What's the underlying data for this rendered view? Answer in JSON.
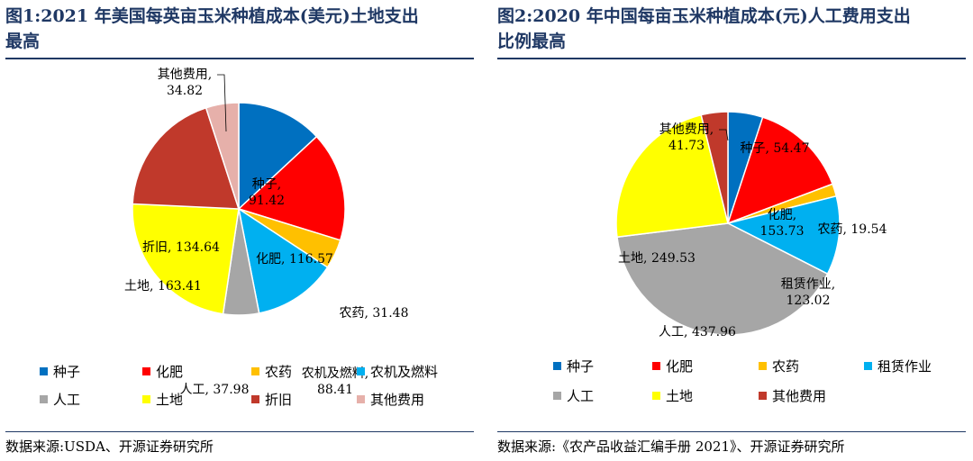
{
  "charts": [
    {
      "title_line1": "图1:2021 年美国每英亩玉米种植成本(美元)土地支出",
      "title_line2": "最高",
      "source": "数据来源:USDA、开源证券研究所"
    },
    {
      "title_line1": "图2:2020 年中国每亩玉米种植成本(元)人工费用支出",
      "title_line2": "比例最高",
      "source": "数据来源:《农产品收益汇编手册 2021》、开源证券研究所"
    }
  ],
  "chart_data": [
    {
      "type": "pie",
      "title": "2021 年美国每英亩玉米种植成本(美元)土地支出最高",
      "legend_position": "bottom",
      "slices": [
        {
          "name": "种子",
          "value": 91.42,
          "color": "#0070c0",
          "label": "种子,\n91.42"
        },
        {
          "name": "化肥",
          "value": 116.57,
          "color": "#ff0000",
          "label": "化肥, 116.57"
        },
        {
          "name": "农药",
          "value": 31.48,
          "color": "#ffc000",
          "label": "农药, 31.48"
        },
        {
          "name": "农机及燃料",
          "value": 88.41,
          "color": "#00b0f0",
          "label": "农机及燃料,\n88.41"
        },
        {
          "name": "人工",
          "value": 37.98,
          "color": "#a6a6a6",
          "label": "人工, 37.98"
        },
        {
          "name": "土地",
          "value": 163.41,
          "color": "#ffff00",
          "label": "土地, 163.41"
        },
        {
          "name": "折旧",
          "value": 134.64,
          "color": "#c0392b",
          "label": "折旧, 134.64"
        },
        {
          "name": "其他费用",
          "value": 34.82,
          "color": "#e6b0aa",
          "label": "其他费用,\n34.82"
        }
      ]
    },
    {
      "type": "pie",
      "title": "2020 年中国每亩玉米种植成本(元)人工费用支出比例最高",
      "legend_position": "bottom",
      "slices": [
        {
          "name": "种子",
          "value": 54.47,
          "color": "#0070c0",
          "label": "种子, 54.47"
        },
        {
          "name": "化肥",
          "value": 153.73,
          "color": "#ff0000",
          "label": "化肥,\n153.73"
        },
        {
          "name": "农药",
          "value": 19.54,
          "color": "#ffc000",
          "label": "农药, 19.54"
        },
        {
          "name": "租赁作业",
          "value": 123.02,
          "color": "#00b0f0",
          "label": "租赁作业,\n123.02"
        },
        {
          "name": "人工",
          "value": 437.96,
          "color": "#a6a6a6",
          "label": "人工, 437.96"
        },
        {
          "name": "土地",
          "value": 249.53,
          "color": "#ffff00",
          "label": "土地, 249.53"
        },
        {
          "name": "其他费用",
          "value": 41.73,
          "color": "#c0392b",
          "label": "其他费用,\n41.73"
        }
      ]
    }
  ]
}
